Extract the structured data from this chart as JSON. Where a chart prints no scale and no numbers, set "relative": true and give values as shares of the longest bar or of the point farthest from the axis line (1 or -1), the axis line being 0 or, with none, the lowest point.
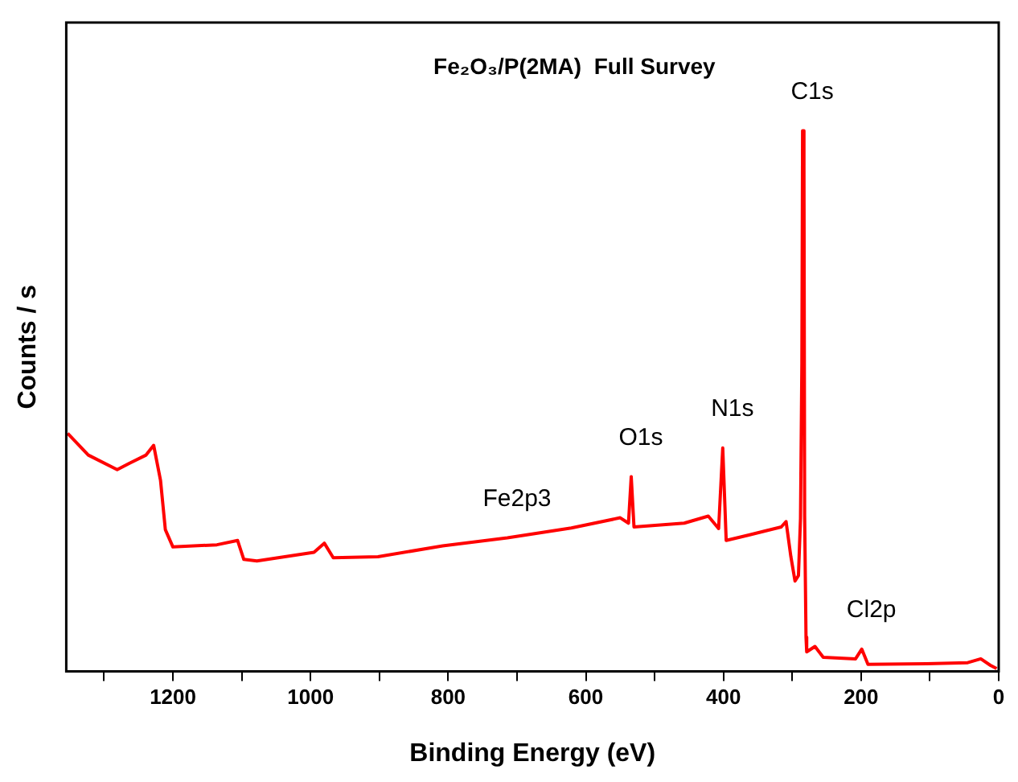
{
  "chart_data": {
    "type": "line",
    "title": "Fe₂O₃/P(2MA)  Full Survey",
    "xlabel": "Binding Energy (eV)",
    "ylabel": "Counts / s",
    "relative": true,
    "tick_labels": "x",
    "grid": false,
    "legend": false,
    "marker": "none",
    "line_style": "solid",
    "xlim": [
      1355,
      0
    ],
    "xticks": [
      {
        "value": 1300,
        "label": null
      },
      1200,
      {
        "value": 1100,
        "label": null
      },
      1000,
      {
        "value": 900,
        "label": null
      },
      800,
      {
        "value": 700,
        "label": null
      },
      600,
      {
        "value": 500,
        "label": null
      },
      400,
      {
        "value": 300,
        "label": null
      },
      200,
      {
        "value": 100,
        "label": null
      },
      0
    ],
    "annotations": [
      {
        "text": "C1s",
        "x": 285,
        "y": 1.0
      },
      {
        "text": "N1s",
        "x": 401,
        "y": 0.413
      },
      {
        "text": "O1s",
        "x": 534,
        "y": 0.36
      },
      {
        "text": "Fe2p3",
        "x": 714,
        "y": 0.247
      },
      {
        "text": "Cl2p",
        "x": 199,
        "y": 0.041
      }
    ],
    "series": [
      {
        "color": "#ff0000",
        "x": [
          1353,
          1323,
          1281,
          1263,
          1239,
          1228,
          1218,
          1211,
          1200,
          1136,
          1106,
          1097,
          1078,
          995,
          980,
          967,
          902,
          808,
          714,
          621,
          550,
          538,
          534,
          530,
          457,
          422,
          407,
          401,
          396,
          363,
          316,
          309,
          302,
          296,
          291,
          288,
          286,
          285,
          283,
          282,
          280,
          279,
          267,
          255,
          208,
          199,
          190,
          105,
          45,
          26,
          12,
          3
        ],
        "values": [
          0.44,
          0.4,
          0.373,
          0.385,
          0.4,
          0.418,
          0.353,
          0.262,
          0.23,
          0.234,
          0.242,
          0.207,
          0.204,
          0.22,
          0.237,
          0.21,
          0.212,
          0.232,
          0.247,
          0.265,
          0.284,
          0.274,
          0.36,
          0.267,
          0.274,
          0.287,
          0.264,
          0.413,
          0.242,
          0.252,
          0.267,
          0.277,
          0.212,
          0.167,
          0.177,
          0.283,
          0.57,
          1.0,
          0.935,
          0.287,
          0.063,
          0.036,
          0.046,
          0.026,
          0.023,
          0.041,
          0.013,
          0.014,
          0.016,
          0.023,
          0.011,
          0.005
        ]
      }
    ]
  }
}
